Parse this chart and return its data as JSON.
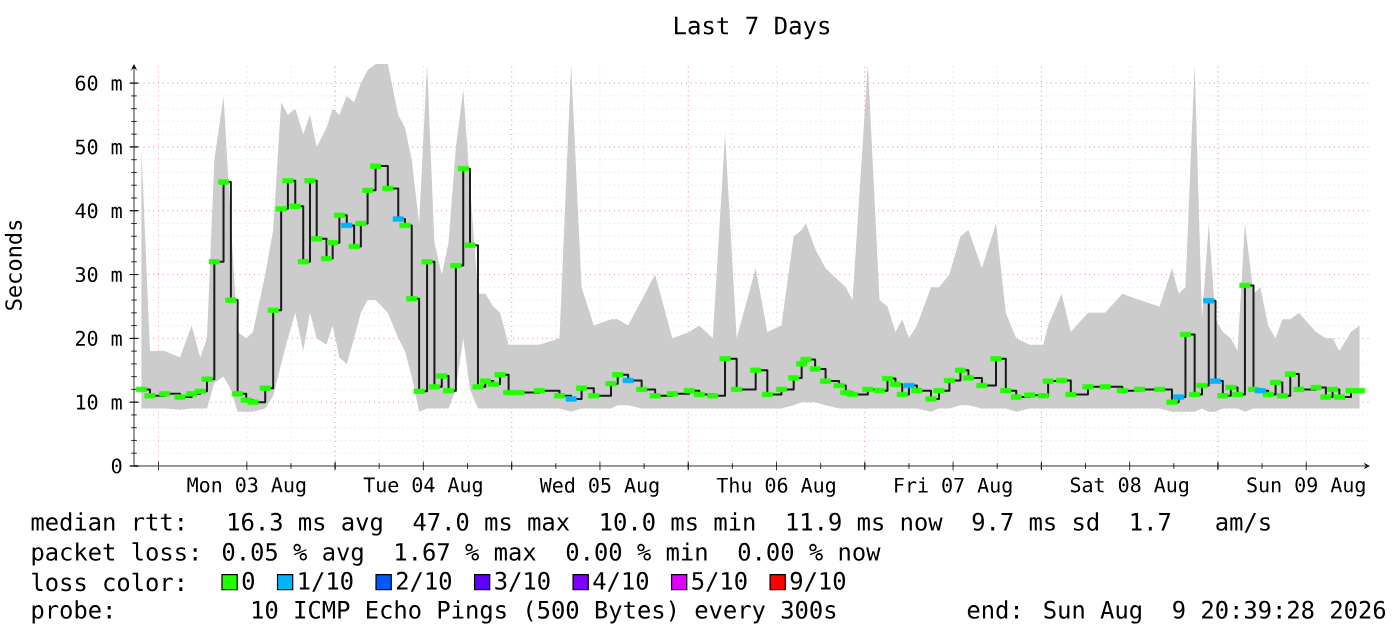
{
  "chart_data": {
    "type": "step",
    "title": "Last 7 Days",
    "ylabel": "Seconds",
    "legend_title": "loss color:",
    "legend": "bottom",
    "grid": true,
    "xlim": [
      "2026-08-02T20:40",
      "2026-08-09T20:40"
    ],
    "xticks": [
      {
        "value": "2026-08-03T00:00",
        "label": null
      },
      {
        "value": "2026-08-03T12:00",
        "label": "Mon 03 Aug"
      },
      {
        "value": "2026-08-04T00:00",
        "label": null
      },
      {
        "value": "2026-08-04T12:00",
        "label": "Tue 04 Aug"
      },
      {
        "value": "2026-08-05T00:00",
        "label": null
      },
      {
        "value": "2026-08-05T12:00",
        "label": "Wed 05 Aug"
      },
      {
        "value": "2026-08-06T00:00",
        "label": null
      },
      {
        "value": "2026-08-06T12:00",
        "label": "Thu 06 Aug"
      },
      {
        "value": "2026-08-07T00:00",
        "label": null
      },
      {
        "value": "2026-08-07T12:00",
        "label": "Fri 07 Aug"
      },
      {
        "value": "2026-08-08T00:00",
        "label": null
      },
      {
        "value": "2026-08-08T12:00",
        "label": "Sat 08 Aug"
      },
      {
        "value": "2026-08-09T00:00",
        "label": null
      },
      {
        "value": "2026-08-09T12:00",
        "label": "Sun 09 Aug"
      }
    ],
    "ylim": [
      0,
      63
    ],
    "yticks": [
      0,
      {
        "value": 10,
        "label": "10 m"
      },
      {
        "value": 20,
        "label": "20 m"
      },
      {
        "value": 30,
        "label": "30 m"
      },
      {
        "value": 40,
        "label": "40 m"
      },
      {
        "value": 50,
        "label": "50 m"
      },
      {
        "value": 60,
        "label": "60 m"
      }
    ],
    "annotations": [
      "median rtt:  16.3 ms avg  47.0 ms max  10.0 ms min  11.9 ms now  9.7 ms sd  1.7   am/s",
      "packet loss: 0.05 % avg  1.67 % max  0.00 % min  0.00 % now",
      "probe:       10 ICMP Echo Pings (500 Bytes) every 300s",
      "end: Sun Aug  9 20:39:28 2026"
    ],
    "x": [
      "2026-08-02T21:40",
      "2026-08-02T22:50",
      "2026-08-03T00:50",
      "2026-08-03T02:55",
      "2026-08-03T04:30",
      "2026-08-03T05:40",
      "2026-08-03T06:35",
      "2026-08-03T07:35",
      "2026-08-03T08:50",
      "2026-08-03T09:50",
      "2026-08-03T10:45",
      "2026-08-03T11:55",
      "2026-08-03T12:50",
      "2026-08-03T14:30",
      "2026-08-03T15:35",
      "2026-08-03T16:40",
      "2026-08-03T17:35",
      "2026-08-03T18:35",
      "2026-08-03T19:40",
      "2026-08-03T20:35",
      "2026-08-03T21:30",
      "2026-08-03T22:50",
      "2026-08-03T23:40",
      "2026-08-04T00:35",
      "2026-08-04T01:35",
      "2026-08-04T02:35",
      "2026-08-04T03:30",
      "2026-08-04T04:25",
      "2026-08-04T05:30",
      "2026-08-04T07:10",
      "2026-08-04T08:35",
      "2026-08-04T09:30",
      "2026-08-04T10:25",
      "2026-08-04T11:25",
      "2026-08-04T12:30",
      "2026-08-04T13:30",
      "2026-08-04T14:30",
      "2026-08-04T15:25",
      "2026-08-04T16:25",
      "2026-08-04T17:25",
      "2026-08-04T18:20",
      "2026-08-04T19:25",
      "2026-08-04T20:25",
      "2026-08-04T21:30",
      "2026-08-04T22:25",
      "2026-08-04T23:35",
      "2026-08-05T01:00",
      "2026-08-05T03:45",
      "2026-08-05T06:30",
      "2026-08-05T08:05",
      "2026-08-05T09:30",
      "2026-08-05T11:10",
      "2026-08-05T13:30",
      "2026-08-05T14:25",
      "2026-08-05T15:50",
      "2026-08-05T17:40",
      "2026-08-05T19:30",
      "2026-08-05T21:50",
      "2026-08-06T00:08",
      "2026-08-06T01:30",
      "2026-08-06T03:20",
      "2026-08-06T05:00",
      "2026-08-06T06:35",
      "2026-08-06T09:10",
      "2026-08-06T10:45",
      "2026-08-06T12:40",
      "2026-08-06T14:20",
      "2026-08-06T15:25",
      "2026-08-06T16:00",
      "2026-08-06T17:15",
      "2026-08-06T18:40",
      "2026-08-06T20:30",
      "2026-08-06T21:25",
      "2026-08-06T22:20",
      "2026-08-07T00:25",
      "2026-08-07T02:00",
      "2026-08-07T03:05",
      "2026-08-07T04:10",
      "2026-08-07T05:05",
      "2026-08-07T06:00",
      "2026-08-07T07:05",
      "2026-08-07T09:00",
      "2026-08-07T10:05",
      "2026-08-07T11:30",
      "2026-08-07T13:00",
      "2026-08-07T14:05",
      "2026-08-07T15:55",
      "2026-08-07T17:50",
      "2026-08-07T19:10",
      "2026-08-07T20:35",
      "2026-08-07T22:25",
      "2026-08-08T00:15",
      "2026-08-08T00:55",
      "2026-08-08T02:45",
      "2026-08-08T04:00",
      "2026-08-08T06:20",
      "2026-08-08T08:40",
      "2026-08-08T11:00",
      "2026-08-08T13:20",
      "2026-08-08T16:05",
      "2026-08-08T17:45",
      "2026-08-08T18:40",
      "2026-08-08T19:35",
      "2026-08-08T20:50",
      "2026-08-08T21:50",
      "2026-08-08T22:45",
      "2026-08-08T23:40",
      "2026-08-09T00:40",
      "2026-08-09T01:45",
      "2026-08-09T02:40",
      "2026-08-09T03:40",
      "2026-08-09T04:50",
      "2026-08-09T05:45",
      "2026-08-09T06:50",
      "2026-08-09T07:50",
      "2026-08-09T08:45",
      "2026-08-09T09:50",
      "2026-08-09T11:00",
      "2026-08-09T13:20",
      "2026-08-09T14:40",
      "2026-08-09T15:35",
      "2026-08-09T16:30",
      "2026-08-09T18:05",
      "2026-08-09T19:15"
    ],
    "series": [
      {
        "color": "#1a1a1a",
        "values": [
          12,
          11,
          11.3,
          10.8,
          11.3,
          11.7,
          13.6,
          32,
          44.5,
          26,
          11.3,
          10.3,
          10,
          12.2,
          24.4,
          40.3,
          44.7,
          40.7,
          32,
          44.7,
          35.6,
          32.5,
          35,
          39.3,
          37.7,
          34.4,
          38,
          43.2,
          47,
          43.5,
          38.7,
          37.7,
          26.2,
          11.7,
          32,
          12.4,
          14.1,
          11.8,
          31.4,
          46.6,
          34.6,
          12.4,
          13.3,
          12.8,
          14.3,
          11.5,
          11.5,
          11.8,
          11,
          10.5,
          12.2,
          11,
          12.9,
          14.3,
          13.4,
          12,
          11,
          11.3,
          11.8,
          11.2,
          11,
          16.8,
          12,
          15,
          11.2,
          12,
          13.8,
          16,
          16.7,
          15.2,
          13.3,
          12.6,
          11.5,
          11.2,
          12,
          11.8,
          13.7,
          12.8,
          11.2,
          12.6,
          11.8,
          10.5,
          11.8,
          13.4,
          15,
          13.8,
          12.6,
          16.8,
          11.8,
          10.8,
          11.1,
          11,
          13.3,
          13.4,
          11.2,
          12.4,
          12.4,
          11.8,
          12,
          12,
          10,
          10.8,
          20.6,
          11.2,
          12.6,
          25.9,
          13.3,
          11,
          12.3,
          11.2,
          28.3,
          12,
          11.8,
          11.2,
          13.1,
          11,
          14.4,
          12,
          12.3,
          10.8,
          12,
          10.8,
          11.8,
          11.8
        ],
        "upper": [
          50,
          18,
          18,
          17,
          22,
          17,
          20,
          48,
          58,
          38,
          21,
          20,
          21,
          30,
          37,
          57,
          55,
          56,
          52,
          55,
          50,
          53,
          56,
          55,
          58,
          57,
          60,
          62,
          63,
          63,
          55,
          53,
          48,
          38,
          63,
          35,
          30,
          35,
          50,
          59,
          44,
          27,
          27,
          25,
          24,
          19,
          19,
          19,
          20,
          63,
          28,
          22,
          23,
          23,
          22,
          26,
          30,
          20,
          21,
          22,
          20,
          52,
          20,
          31,
          21,
          22,
          36,
          37,
          38,
          34,
          31,
          29,
          28,
          26,
          63,
          26,
          25,
          21,
          23,
          20,
          22,
          28,
          28,
          30,
          36,
          37,
          31,
          38,
          24,
          20,
          19,
          19,
          22,
          27,
          21,
          24,
          24,
          27,
          26,
          25,
          31,
          27,
          28,
          63,
          23,
          38,
          23,
          21,
          20,
          18,
          38,
          27,
          28,
          22,
          20,
          23,
          23,
          24,
          21,
          20,
          20,
          18,
          21,
          22
        ],
        "lower": [
          9,
          9,
          9,
          8.8,
          9,
          9,
          9,
          13,
          14,
          12,
          8.5,
          8.5,
          8.5,
          9,
          11,
          16,
          20,
          24,
          18,
          24,
          20,
          19,
          22,
          17,
          16,
          20,
          24,
          26,
          26,
          24,
          20,
          18,
          14,
          8.5,
          9,
          9,
          9,
          9,
          12,
          20,
          12,
          9,
          9,
          9,
          9,
          9,
          9,
          9,
          9,
          8.5,
          9,
          9,
          9,
          9.5,
          9.5,
          9,
          9,
          9,
          9,
          9,
          9,
          9,
          9,
          9,
          9,
          9,
          9.5,
          10,
          10,
          10,
          9.5,
          9,
          9,
          9,
          9,
          9,
          9,
          9,
          9,
          9,
          9,
          8.5,
          9,
          9,
          9.5,
          9.5,
          9,
          9,
          9,
          8.5,
          9,
          9,
          9,
          9,
          9,
          9,
          9,
          9,
          9,
          9,
          8.5,
          8.5,
          8.5,
          8.5,
          9,
          8.5,
          8.5,
          9,
          9,
          9,
          8.5,
          9,
          9,
          9,
          9,
          9,
          9,
          9,
          9,
          9,
          9,
          9,
          9,
          9
        ]
      },
      {
        "name": "0",
        "type": "scatter",
        "color": "#22ff00",
        "values": [
          12,
          11,
          11.3,
          10.8,
          11.3,
          11.7,
          13.6,
          32,
          44.5,
          26,
          11.3,
          10.3,
          10,
          12.2,
          24.4,
          40.3,
          44.7,
          40.7,
          32,
          44.7,
          35.6,
          32.5,
          35,
          39.3,
          null,
          34.4,
          38,
          43.2,
          47,
          43.5,
          null,
          37.7,
          26.2,
          11.7,
          32,
          12.4,
          14.1,
          11.8,
          31.4,
          46.6,
          34.6,
          12.4,
          13.3,
          12.8,
          14.3,
          11.5,
          11.5,
          11.8,
          11,
          null,
          12.2,
          11,
          12.9,
          14.3,
          null,
          12,
          11,
          11.3,
          11.8,
          11.2,
          11,
          16.8,
          12,
          15,
          11.2,
          12,
          13.8,
          16,
          16.7,
          15.2,
          13.3,
          12.6,
          11.5,
          11.2,
          12,
          11.8,
          13.7,
          12.8,
          11.2,
          null,
          11.8,
          10.5,
          11.8,
          13.4,
          15,
          13.8,
          12.6,
          16.8,
          11.8,
          10.8,
          11.1,
          11,
          13.3,
          13.4,
          11.2,
          12.4,
          12.4,
          11.8,
          12,
          12,
          10,
          null,
          20.6,
          11.2,
          12.6,
          null,
          null,
          11,
          12.3,
          11.2,
          28.3,
          12,
          null,
          11.2,
          13.1,
          11,
          14.4,
          12,
          12.3,
          10.8,
          12,
          10.8,
          11.8,
          11.8
        ]
      },
      {
        "name": "1/10",
        "type": "scatter",
        "color": "#00b4ff",
        "x": [
          "2026-08-04T01:35",
          "2026-08-04T08:35",
          "2026-08-05T08:05",
          "2026-08-05T15:50",
          "2026-08-07T06:00",
          "2026-08-08T18:40",
          "2026-08-08T22:45",
          "2026-08-08T23:40",
          "2026-08-09T05:45"
        ],
        "values": [
          37.7,
          38.7,
          10.5,
          13.4,
          12.6,
          10.8,
          25.9,
          13.3,
          11.8
        ]
      },
      {
        "name": "2/10",
        "type": "scatter",
        "color": "#0059ff",
        "values": [
          null,
          null,
          null,
          null,
          null,
          null,
          null,
          null,
          null,
          null,
          null,
          null,
          null,
          null,
          null,
          null,
          null,
          null,
          null,
          null,
          null,
          null,
          null,
          null,
          null,
          null,
          null,
          null,
          null,
          null,
          null,
          null,
          null,
          null,
          null,
          null,
          null,
          null,
          null,
          null,
          null,
          null,
          null,
          null,
          null,
          null,
          null,
          null,
          null,
          null,
          null,
          null,
          null,
          null,
          null,
          null,
          null,
          null,
          null,
          null,
          null,
          null,
          null,
          null,
          null,
          null,
          null,
          null,
          null,
          null,
          null,
          null,
          null,
          null,
          null,
          null,
          null,
          null,
          null,
          null,
          null,
          null,
          null,
          null,
          null,
          null,
          null,
          null,
          null,
          null,
          null,
          null,
          null,
          null,
          null,
          null,
          null,
          null,
          null,
          null,
          null,
          null,
          null,
          null,
          null,
          null,
          null,
          null,
          null,
          null,
          null,
          null,
          null,
          null,
          null,
          null,
          null,
          null,
          null,
          null,
          null,
          null,
          null,
          null
        ]
      },
      {
        "name": "3/10",
        "type": "scatter",
        "color": "#5e00ff",
        "values": [
          null,
          null,
          null,
          null,
          null,
          null,
          null,
          null,
          null,
          null,
          null,
          null,
          null,
          null,
          null,
          null,
          null,
          null,
          null,
          null,
          null,
          null,
          null,
          null,
          null,
          null,
          null,
          null,
          null,
          null,
          null,
          null,
          null,
          null,
          null,
          null,
          null,
          null,
          null,
          null,
          null,
          null,
          null,
          null,
          null,
          null,
          null,
          null,
          null,
          null,
          null,
          null,
          null,
          null,
          null,
          null,
          null,
          null,
          null,
          null,
          null,
          null,
          null,
          null,
          null,
          null,
          null,
          null,
          null,
          null,
          null,
          null,
          null,
          null,
          null,
          null,
          null,
          null,
          null,
          null,
          null,
          null,
          null,
          null,
          null,
          null,
          null,
          null,
          null,
          null,
          null,
          null,
          null,
          null,
          null,
          null,
          null,
          null,
          null,
          null,
          null,
          null,
          null,
          null,
          null,
          null,
          null,
          null,
          null,
          null,
          null,
          null,
          null,
          null,
          null,
          null,
          null,
          null,
          null,
          null,
          null,
          null,
          null,
          null
        ]
      },
      {
        "name": "4/10",
        "type": "scatter",
        "color": "#7e00ff",
        "values": [
          null,
          null,
          null,
          null,
          null,
          null,
          null,
          null,
          null,
          null,
          null,
          null,
          null,
          null,
          null,
          null,
          null,
          null,
          null,
          null,
          null,
          null,
          null,
          null,
          null,
          null,
          null,
          null,
          null,
          null,
          null,
          null,
          null,
          null,
          null,
          null,
          null,
          null,
          null,
          null,
          null,
          null,
          null,
          null,
          null,
          null,
          null,
          null,
          null,
          null,
          null,
          null,
          null,
          null,
          null,
          null,
          null,
          null,
          null,
          null,
          null,
          null,
          null,
          null,
          null,
          null,
          null,
          null,
          null,
          null,
          null,
          null,
          null,
          null,
          null,
          null,
          null,
          null,
          null,
          null,
          null,
          null,
          null,
          null,
          null,
          null,
          null,
          null,
          null,
          null,
          null,
          null,
          null,
          null,
          null,
          null,
          null,
          null,
          null,
          null,
          null,
          null,
          null,
          null,
          null,
          null,
          null,
          null,
          null,
          null,
          null,
          null,
          null,
          null,
          null,
          null,
          null,
          null,
          null,
          null,
          null,
          null,
          null,
          null
        ]
      },
      {
        "name": "5/10",
        "type": "scatter",
        "color": "#dd00ff",
        "values": [
          null,
          null,
          null,
          null,
          null,
          null,
          null,
          null,
          null,
          null,
          null,
          null,
          null,
          null,
          null,
          null,
          null,
          null,
          null,
          null,
          null,
          null,
          null,
          null,
          null,
          null,
          null,
          null,
          null,
          null,
          null,
          null,
          null,
          null,
          null,
          null,
          null,
          null,
          null,
          null,
          null,
          null,
          null,
          null,
          null,
          null,
          null,
          null,
          null,
          null,
          null,
          null,
          null,
          null,
          null,
          null,
          null,
          null,
          null,
          null,
          null,
          null,
          null,
          null,
          null,
          null,
          null,
          null,
          null,
          null,
          null,
          null,
          null,
          null,
          null,
          null,
          null,
          null,
          null,
          null,
          null,
          null,
          null,
          null,
          null,
          null,
          null,
          null,
          null,
          null,
          null,
          null,
          null,
          null,
          null,
          null,
          null,
          null,
          null,
          null,
          null,
          null,
          null,
          null,
          null,
          null,
          null,
          null,
          null,
          null,
          null,
          null,
          null,
          null,
          null,
          null,
          null,
          null,
          null,
          null,
          null,
          null,
          null,
          null
        ]
      },
      {
        "name": "9/10",
        "type": "scatter",
        "color": "#ff0000",
        "values": [
          null,
          null,
          null,
          null,
          null,
          null,
          null,
          null,
          null,
          null,
          null,
          null,
          null,
          null,
          null,
          null,
          null,
          null,
          null,
          null,
          null,
          null,
          null,
          null,
          null,
          null,
          null,
          null,
          null,
          null,
          null,
          null,
          null,
          null,
          null,
          null,
          null,
          null,
          null,
          null,
          null,
          null,
          null,
          null,
          null,
          null,
          null,
          null,
          null,
          null,
          null,
          null,
          null,
          null,
          null,
          null,
          null,
          null,
          null,
          null,
          null,
          null,
          null,
          null,
          null,
          null,
          null,
          null,
          null,
          null,
          null,
          null,
          null,
          null,
          null,
          null,
          null,
          null,
          null,
          null,
          null,
          null,
          null,
          null,
          null,
          null,
          null,
          null,
          null,
          null,
          null,
          null,
          null,
          null,
          null,
          null,
          null,
          null,
          null,
          null,
          null,
          null,
          null,
          null,
          null,
          null,
          null,
          null,
          null,
          null,
          null,
          null,
          null,
          null,
          null,
          null,
          null,
          null,
          null,
          null,
          null,
          null,
          null,
          null
        ]
      }
    ]
  }
}
